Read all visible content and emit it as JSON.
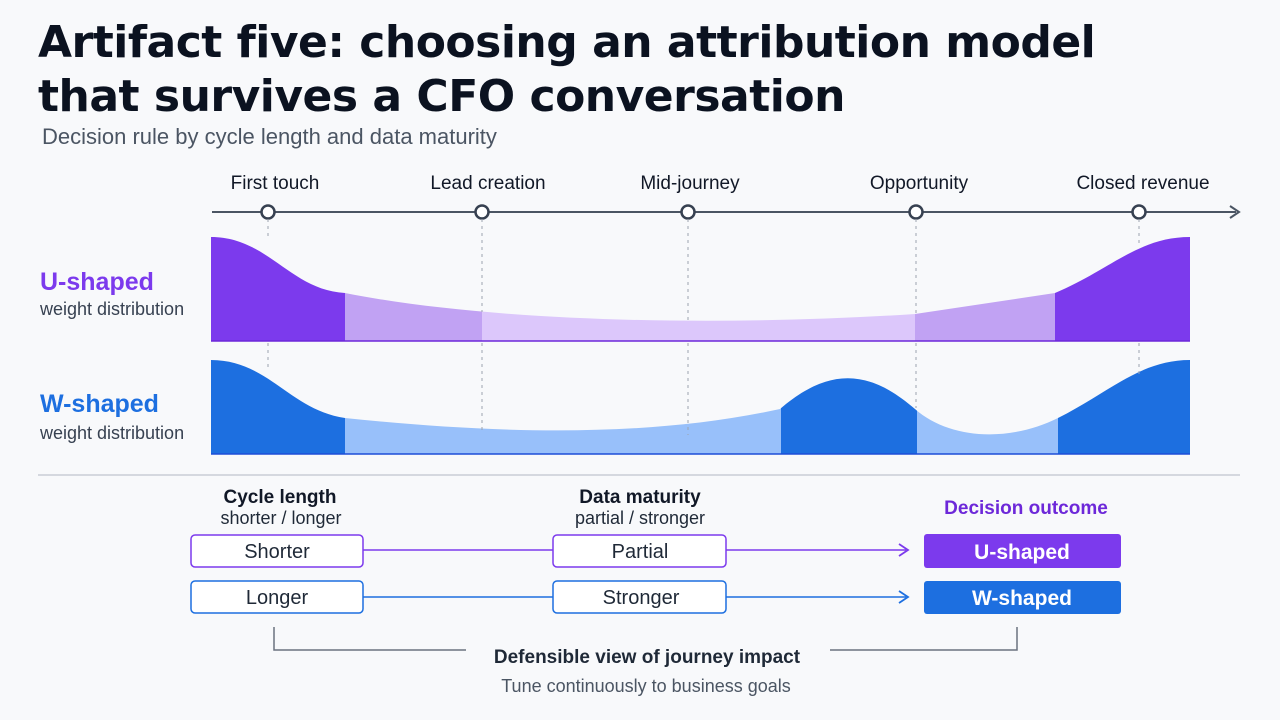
{
  "title_line1": "Artifact five: choosing an attribution model",
  "title_line2": "that survives a CFO conversation",
  "subtitle": "Decision rule by cycle length and data maturity",
  "timeline": {
    "stages": [
      "First touch",
      "Lead creation",
      "Mid-journey",
      "Opportunity",
      "Closed revenue"
    ]
  },
  "models": [
    {
      "name": "U-shaped",
      "caption": "weight distribution",
      "color": "#7c3aed"
    },
    {
      "name": "W-shaped",
      "caption": "weight distribution",
      "color": "#1d6fe0"
    }
  ],
  "decision": {
    "cycle_header": "Cycle length",
    "cycle_sub": "shorter / longer",
    "maturity_header": "Data maturity",
    "maturity_sub": "partial / stronger",
    "outcome_header": "Decision outcome",
    "rows": [
      {
        "cycle": "Shorter",
        "maturity": "Partial",
        "outcome": "U-shaped"
      },
      {
        "cycle": "Longer",
        "maturity": "Stronger",
        "outcome": "W-shaped"
      }
    ]
  },
  "footer": {
    "title": "Defensible view of journey impact",
    "sub": "Tune continuously to business goals"
  }
}
